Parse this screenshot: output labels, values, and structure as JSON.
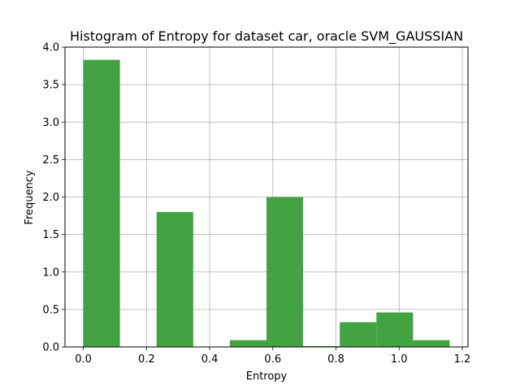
{
  "chart_data": {
    "type": "bar",
    "title": "Histogram of Entropy for dataset car, oracle SVM_GAUSSIAN",
    "xlabel": "Entropy",
    "ylabel": "Frequency",
    "xlim": [
      -0.058,
      1.218
    ],
    "ylim": [
      0,
      4.0
    ],
    "xticks": [
      "0.0",
      "0.2",
      "0.4",
      "0.6",
      "0.8",
      "1.0",
      "1.2"
    ],
    "yticks": [
      "0.0",
      "0.5",
      "1.0",
      "1.5",
      "2.0",
      "2.5",
      "3.0",
      "3.5",
      "4.0"
    ],
    "grid": true,
    "bar_color": "#43a343",
    "bins": [
      {
        "start": 0.0,
        "end": 0.116,
        "value": 3.83
      },
      {
        "start": 0.116,
        "end": 0.232,
        "value": 0.0
      },
      {
        "start": 0.232,
        "end": 0.348,
        "value": 1.8
      },
      {
        "start": 0.348,
        "end": 0.464,
        "value": 0.0
      },
      {
        "start": 0.464,
        "end": 0.58,
        "value": 0.09
      },
      {
        "start": 0.58,
        "end": 0.696,
        "value": 2.0
      },
      {
        "start": 0.696,
        "end": 0.812,
        "value": 0.01
      },
      {
        "start": 0.812,
        "end": 0.928,
        "value": 0.33
      },
      {
        "start": 0.928,
        "end": 1.044,
        "value": 0.46
      },
      {
        "start": 1.044,
        "end": 1.16,
        "value": 0.09
      }
    ]
  }
}
